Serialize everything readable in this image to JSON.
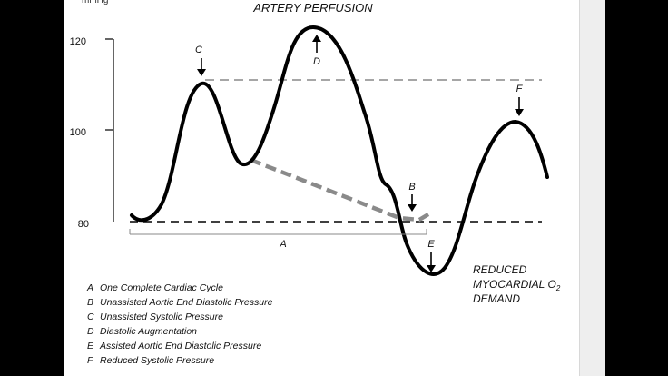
{
  "diagram": {
    "title": "ARTERY PERFUSION",
    "unit_label": "mmHg",
    "y_ticks": [
      "120",
      "100",
      "80"
    ],
    "markers": {
      "A": "A",
      "B": "B",
      "C": "C",
      "D": "D",
      "E": "E",
      "F": "F"
    },
    "demand_label_lines": [
      "REDUCED",
      "MYOCARDIAL O",
      "DEMAND"
    ],
    "demand_subscript": "2",
    "legend": [
      {
        "key": "A",
        "text": "One Complete Cardiac Cycle"
      },
      {
        "key": "B",
        "text": "Unassisted Aortic End Diastolic Pressure"
      },
      {
        "key": "C",
        "text": "Unassisted Systolic Pressure"
      },
      {
        "key": "D",
        "text": "Diastolic Augmentation"
      },
      {
        "key": "E",
        "text": "Assisted Aortic End Diastolic Pressure"
      },
      {
        "key": "F",
        "text": "Reduced Systolic Pressure"
      }
    ],
    "colors": {
      "background": "#000000",
      "panel": "#ffffff",
      "curve": "#000000",
      "reference_dashed": "#888888",
      "unassisted_dashed": "#8a8a8a"
    }
  }
}
